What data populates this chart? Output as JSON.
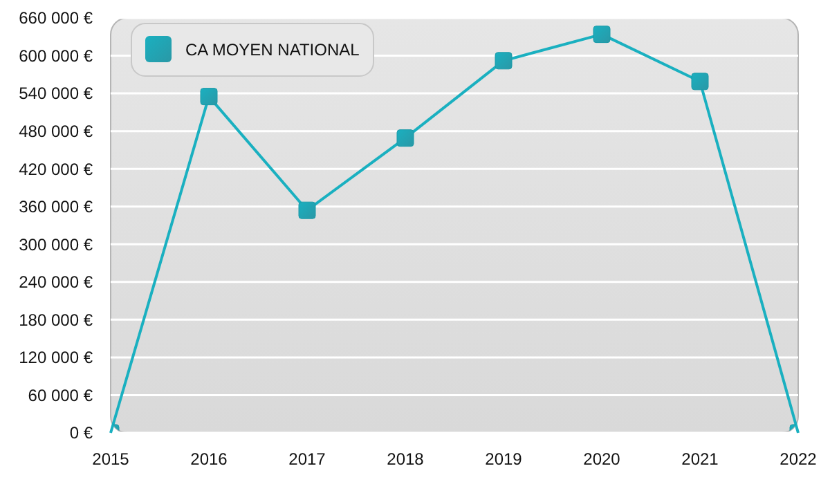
{
  "chart_data": {
    "type": "line",
    "x": [
      2015,
      2016,
      2017,
      2018,
      2019,
      2020,
      2021,
      2022
    ],
    "series": [
      {
        "name": "CA MOYEN NATIONAL",
        "color": "#1ab0c0",
        "values": [
          0,
          535000,
          354000,
          469000,
          592000,
          634000,
          559000,
          0
        ]
      }
    ],
    "xlim": [
      2015,
      2022
    ],
    "xticks": [
      2015,
      2016,
      2017,
      2018,
      2019,
      2020,
      2021,
      2022
    ],
    "ylim": [
      0,
      660000
    ],
    "yticks": [
      {
        "value": 0,
        "label": "0 €"
      },
      {
        "value": 60000,
        "label": "60 000 €"
      },
      {
        "value": 120000,
        "label": "120 000 €"
      },
      {
        "value": 180000,
        "label": "180 000 €"
      },
      {
        "value": 240000,
        "label": "240 000 €"
      },
      {
        "value": 300000,
        "label": "300 000 €"
      },
      {
        "value": 360000,
        "label": "360 000 €"
      },
      {
        "value": 420000,
        "label": "420 000 €"
      },
      {
        "value": 480000,
        "label": "480 000 €"
      },
      {
        "value": 540000,
        "label": "540 000 €"
      },
      {
        "value": 600000,
        "label": "600 000 €"
      },
      {
        "value": 660000,
        "label": "660 000 €"
      }
    ],
    "grid": "y",
    "legend": "top left",
    "marker": "square",
    "line_style": "solid"
  }
}
